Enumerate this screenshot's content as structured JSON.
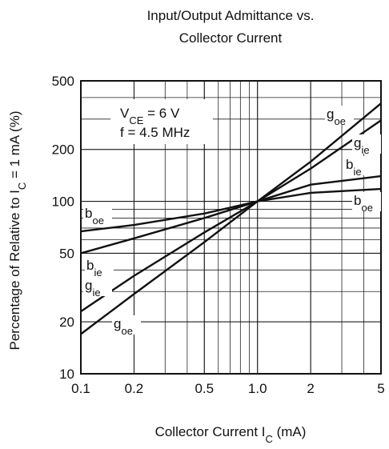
{
  "chart_data": {
    "type": "line",
    "title": [
      "Input/Output Admittance vs.",
      "Collector Current"
    ],
    "x_label": {
      "text": "Collector Current  I",
      "sub": "C",
      "after": "  (mA)"
    },
    "y_label": {
      "text": "Percentage of Relative to I",
      "sub": "C",
      "after": " = 1 mA  (%)"
    },
    "annotations": [
      {
        "text": "V",
        "sub": "CE",
        "after": " = 6 V"
      },
      {
        "text": "f = 4.5 MHz"
      }
    ],
    "x": [
      0.1,
      0.2,
      0.5,
      1,
      2,
      5
    ],
    "xlim": [
      0.1,
      5
    ],
    "xticks": [
      0.1,
      0.2,
      0.5,
      {
        "value": 1,
        "label": "1.0"
      },
      2,
      5
    ],
    "ylim": [
      10,
      500
    ],
    "yticks": [
      10,
      20,
      50,
      100,
      200,
      500
    ],
    "log_x": true,
    "log_y": true,
    "grid": true,
    "series": [
      {
        "name": "g",
        "sub": "oe",
        "color": "#111111",
        "values": [
          17,
          29,
          58,
          100,
          170,
          370
        ]
      },
      {
        "name": "g",
        "sub": "ie",
        "color": "#111111",
        "values": [
          23,
          37,
          66,
          100,
          155,
          295
        ]
      },
      {
        "name": "b",
        "sub": "ie",
        "color": "#111111",
        "values": [
          50,
          61,
          80,
          100,
          125,
          140
        ]
      },
      {
        "name": "b",
        "sub": "oe",
        "color": "#111111",
        "values": [
          67,
          73,
          85,
          100,
          112,
          118
        ]
      }
    ]
  }
}
